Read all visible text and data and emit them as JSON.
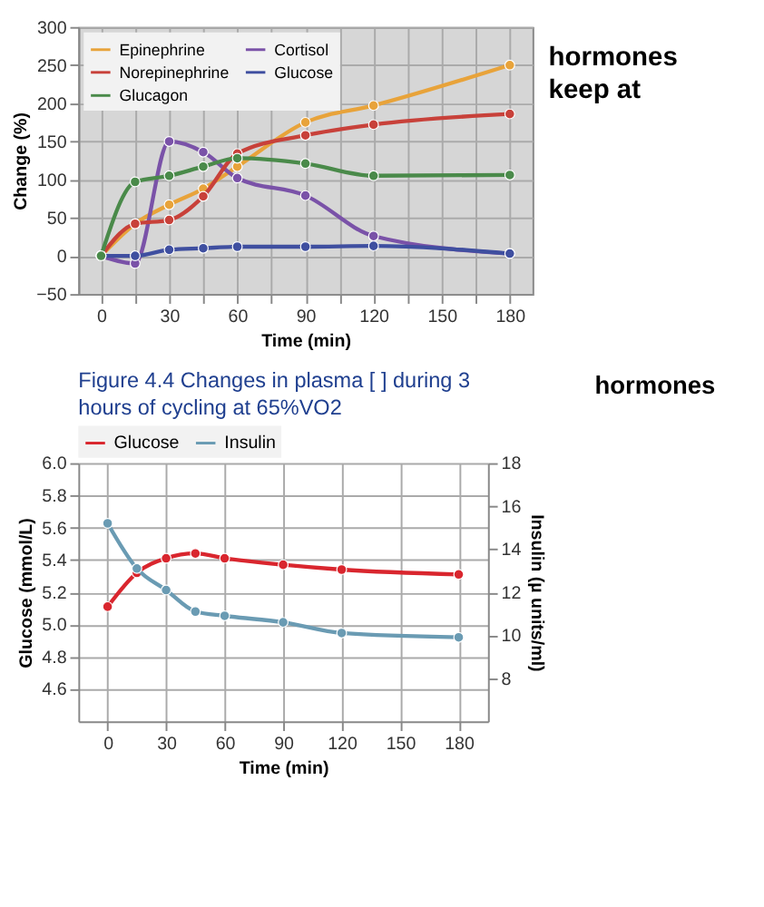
{
  "chart_data": [
    {
      "type": "line",
      "xlabel": "Time (min)",
      "ylabel": "Change (%)",
      "x": [
        0,
        15,
        30,
        45,
        60,
        90,
        120,
        180
      ],
      "series": [
        {
          "name": "Epinephrine",
          "color": "#e8a33a",
          "values": [
            0,
            42,
            67,
            88,
            117,
            175,
            197,
            250
          ]
        },
        {
          "name": "Cortisol",
          "color": "#7a52a8",
          "values": [
            0,
            -10,
            150,
            136,
            102,
            79,
            26,
            3
          ]
        },
        {
          "name": "Norepinephrine",
          "color": "#c8413a",
          "values": [
            0,
            42,
            47,
            78,
            134,
            158,
            172,
            186
          ]
        },
        {
          "name": "Glucose",
          "color": "#3f4fa0",
          "values": [
            0,
            0,
            8,
            10,
            12,
            12,
            13,
            3
          ]
        },
        {
          "name": "Glucagon",
          "color": "#4a8a4a",
          "values": [
            0,
            97,
            105,
            117,
            128,
            121,
            105,
            106
          ]
        }
      ],
      "xlim": [
        -10,
        190
      ],
      "ylim": [
        -50,
        300
      ],
      "xticks": [
        0,
        {
          "value": 15,
          "label": null
        },
        30,
        {
          "value": 45,
          "label": null
        },
        60,
        {
          "value": 75,
          "label": null
        },
        90,
        {
          "value": 105,
          "label": null
        },
        120,
        {
          "value": 135,
          "label": null
        },
        150,
        {
          "value": 165,
          "label": null
        },
        180
      ],
      "yticks": [
        -50,
        0,
        50,
        100,
        150,
        200,
        250,
        300
      ],
      "grid": true,
      "legend": "top left",
      "marker": "circle",
      "annotations": [
        "Figure 4.4 Changes in plasma [ ] during 3 hours of cycling at 65%VO2",
        "hormones",
        "hormones keep at"
      ]
    },
    {
      "type": "line",
      "xlabel": "Time (min)",
      "ylabel": "Glucose (mmol/L)",
      "y2label": "Insulin (µ units/ml)",
      "x": [
        0,
        15,
        30,
        45,
        60,
        90,
        120,
        180
      ],
      "series": [
        {
          "name": "Glucose",
          "color": "#d9262e",
          "values": [
            5.11,
            5.32,
            5.41,
            5.44,
            5.41,
            5.37,
            5.34,
            5.31
          ]
        },
        {
          "name": "Insulin",
          "color": "#6a9bb3",
          "axis": "y2",
          "values": [
            15.2,
            13.1,
            12.1,
            11.1,
            10.9,
            10.6,
            10.1,
            9.9
          ]
        }
      ],
      "xlim": [
        -15,
        195
      ],
      "ylim": [
        4.4,
        6.0
      ],
      "y2lim": [
        6,
        18
      ],
      "xticks": [
        0,
        30,
        60,
        90,
        120,
        150,
        180
      ],
      "yticks": [
        4.6,
        4.8,
        {
          "value": 5.0,
          "label": "5.0"
        },
        5.2,
        5.4,
        5.6,
        5.8,
        {
          "value": 6.0,
          "label": "6.0"
        }
      ],
      "y2ticks": [
        8,
        10,
        12,
        14,
        16,
        18
      ],
      "grid": true,
      "legend": "top",
      "marker": "circle"
    }
  ]
}
